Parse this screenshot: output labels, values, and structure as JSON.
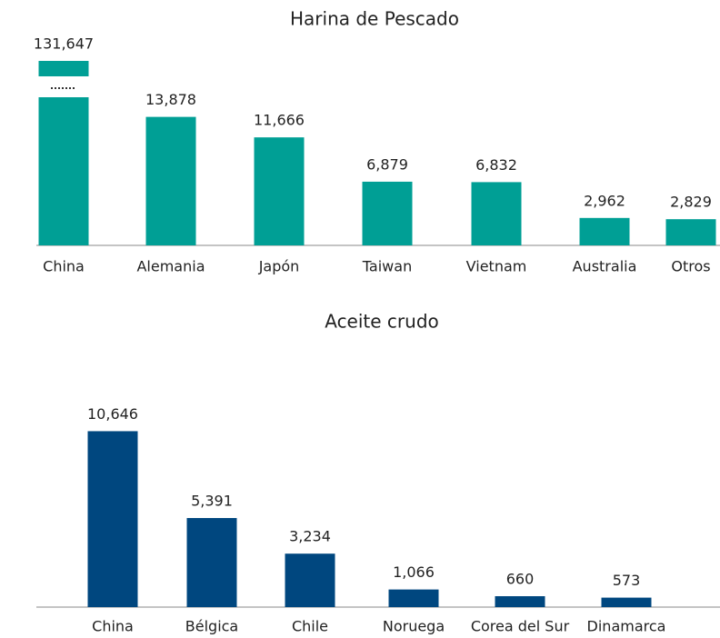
{
  "chart_data": [
    {
      "type": "bar",
      "title": "Harina de Pescado",
      "categories": [
        "China",
        "Alemania",
        "Japón",
        "Taiwan",
        "Vietnam",
        "Australia",
        "Otros"
      ],
      "values": [
        131647,
        13878,
        11666,
        6879,
        6832,
        2962,
        2829
      ],
      "value_labels": [
        "131,647",
        "13,878",
        "11,666",
        "6,879",
        "6,832",
        "2,962",
        "2,829"
      ],
      "color": "#009f95",
      "ylim": [
        0,
        16000
      ]
    },
    {
      "type": "bar",
      "title": "Aceite crudo",
      "categories": [
        "China",
        "Bélgica",
        "Chile",
        "Noruega",
        "Corea del Sur",
        "Dinamarca"
      ],
      "values": [
        10646,
        5391,
        3234,
        1066,
        660,
        573
      ],
      "value_labels": [
        "10,646",
        "5,391",
        "3,234",
        "1,066",
        "660",
        "573"
      ],
      "color": "#00477f",
      "ylim": [
        0,
        11000
      ]
    }
  ]
}
